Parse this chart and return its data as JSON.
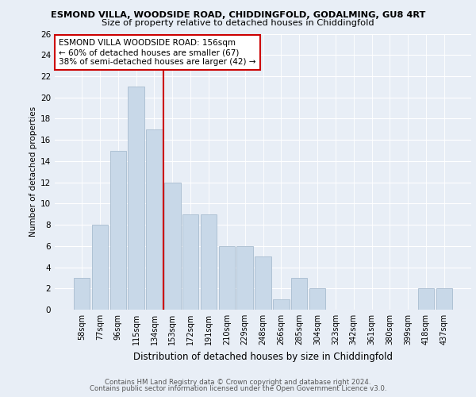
{
  "title1": "ESMOND VILLA, WOODSIDE ROAD, CHIDDINGFOLD, GODALMING, GU8 4RT",
  "title2": "Size of property relative to detached houses in Chiddingfold",
  "xlabel": "Distribution of detached houses by size in Chiddingfold",
  "ylabel": "Number of detached properties",
  "categories": [
    "58sqm",
    "77sqm",
    "96sqm",
    "115sqm",
    "134sqm",
    "153sqm",
    "172sqm",
    "191sqm",
    "210sqm",
    "229sqm",
    "248sqm",
    "266sqm",
    "285sqm",
    "304sqm",
    "323sqm",
    "342sqm",
    "361sqm",
    "380sqm",
    "399sqm",
    "418sqm",
    "437sqm"
  ],
  "values": [
    3,
    8,
    15,
    21,
    17,
    12,
    9,
    9,
    6,
    6,
    5,
    1,
    3,
    2,
    0,
    0,
    0,
    0,
    0,
    2,
    2
  ],
  "bar_color": "#c8d8e8",
  "bar_edge_color": "#a8bccf",
  "vline_color": "#cc0000",
  "annotation_text": "ESMOND VILLA WOODSIDE ROAD: 156sqm\n← 60% of detached houses are smaller (67)\n38% of semi-detached houses are larger (42) →",
  "annotation_box_color": "#ffffff",
  "annotation_box_edge": "#cc0000",
  "ylim": [
    0,
    26
  ],
  "yticks": [
    0,
    2,
    4,
    6,
    8,
    10,
    12,
    14,
    16,
    18,
    20,
    22,
    24,
    26
  ],
  "footer1": "Contains HM Land Registry data © Crown copyright and database right 2024.",
  "footer2": "Contains public sector information licensed under the Open Government Licence v3.0.",
  "bg_color": "#e8eef6",
  "plot_bg_color": "#e8eef6"
}
